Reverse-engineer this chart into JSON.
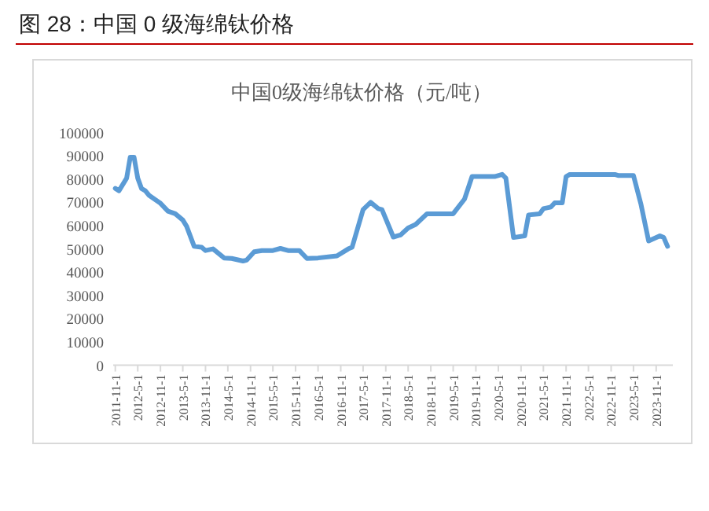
{
  "chart_data": {
    "type": "line",
    "title": "图 28：中国 0 级海绵钛价格",
    "subtitle": "中国0级海绵钛价格（元/吨）",
    "x": [
      "2011-11",
      "2011-12",
      "2012-02",
      "2012-03",
      "2012-04",
      "2012-05",
      "2012-06",
      "2012-07",
      "2012-08",
      "2012-11",
      "2013-01",
      "2013-03",
      "2013-05",
      "2013-06",
      "2013-08",
      "2013-10",
      "2013-11",
      "2014-01",
      "2014-04",
      "2014-06",
      "2014-09",
      "2014-10",
      "2014-12",
      "2015-02",
      "2015-05",
      "2015-07",
      "2015-09",
      "2015-12",
      "2016-02",
      "2016-05",
      "2016-10",
      "2017-01",
      "2017-02",
      "2017-05",
      "2017-07",
      "2017-09",
      "2017-10",
      "2018-01",
      "2018-03",
      "2018-05",
      "2018-07",
      "2018-10",
      "2019-05",
      "2019-08",
      "2019-10",
      "2020-04",
      "2020-06",
      "2020-07",
      "2020-09",
      "2020-12",
      "2021-01",
      "2021-04",
      "2021-05",
      "2021-07",
      "2021-08",
      "2021-10",
      "2021-11",
      "2021-12",
      "2022-12",
      "2023-01",
      "2023-05",
      "2023-07",
      "2023-09",
      "2023-12",
      "2024-01",
      "2024-02"
    ],
    "series": [
      {
        "color": "#5b9bd5",
        "values": [
          76000,
          75000,
          80400,
          89400,
          89400,
          80400,
          75900,
          75000,
          73000,
          69600,
          66200,
          65100,
          62400,
          59700,
          51100,
          50700,
          49300,
          50000,
          46100,
          45900,
          44800,
          45200,
          48800,
          49300,
          49300,
          50200,
          49300,
          49300,
          45900,
          46100,
          47000,
          50000,
          50700,
          66900,
          70000,
          67300,
          66900,
          55100,
          56000,
          59000,
          60500,
          65100,
          65100,
          71400,
          81100,
          81100,
          82000,
          80400,
          54900,
          55600,
          64600,
          65100,
          67300,
          68000,
          69800,
          69800,
          81100,
          82000,
          82000,
          81500,
          81500,
          69100,
          53400,
          55600,
          54900,
          51100
        ]
      }
    ],
    "xlim": [
      "2011-10-15",
      "2024-03-15"
    ],
    "xticks": [
      {
        "value": "2011-11-01",
        "label": "2011-11-1"
      },
      {
        "value": "2012-05-01",
        "label": "2012-5-1"
      },
      {
        "value": "2012-11-01",
        "label": "2012-11-1"
      },
      {
        "value": "2013-05-01",
        "label": "2013-5-1"
      },
      {
        "value": "2013-11-01",
        "label": "2013-11-1"
      },
      {
        "value": "2014-05-01",
        "label": "2014-5-1"
      },
      {
        "value": "2014-11-01",
        "label": "2014-11-1"
      },
      {
        "value": "2015-05-01",
        "label": "2015-5-1"
      },
      {
        "value": "2015-11-01",
        "label": "2015-11-1"
      },
      {
        "value": "2016-05-01",
        "label": "2016-5-1"
      },
      {
        "value": "2016-11-01",
        "label": "2016-11-1"
      },
      {
        "value": "2017-05-01",
        "label": "2017-5-1"
      },
      {
        "value": "2017-11-01",
        "label": "2017-11-1"
      },
      {
        "value": "2018-05-01",
        "label": "2018-5-1"
      },
      {
        "value": "2018-11-01",
        "label": "2018-11-1"
      },
      {
        "value": "2019-05-01",
        "label": "2019-5-1"
      },
      {
        "value": "2019-11-01",
        "label": "2019-11-1"
      },
      {
        "value": "2020-05-01",
        "label": "2020-5-1"
      },
      {
        "value": "2020-11-01",
        "label": "2020-11-1"
      },
      {
        "value": "2021-05-01",
        "label": "2021-5-1"
      },
      {
        "value": "2021-11-01",
        "label": "2021-11-1"
      },
      {
        "value": "2022-05-01",
        "label": "2022-5-1"
      },
      {
        "value": "2022-11-01",
        "label": "2022-11-1"
      },
      {
        "value": "2023-05-01",
        "label": "2023-5-1"
      },
      {
        "value": "2023-11-01",
        "label": "2023-11-1"
      }
    ],
    "ylim": [
      0,
      100000
    ],
    "yticks": [
      0,
      10000,
      20000,
      30000,
      40000,
      50000,
      60000,
      70000,
      80000,
      90000,
      100000
    ],
    "grid": false,
    "marker": "none",
    "line_style": "solid"
  }
}
